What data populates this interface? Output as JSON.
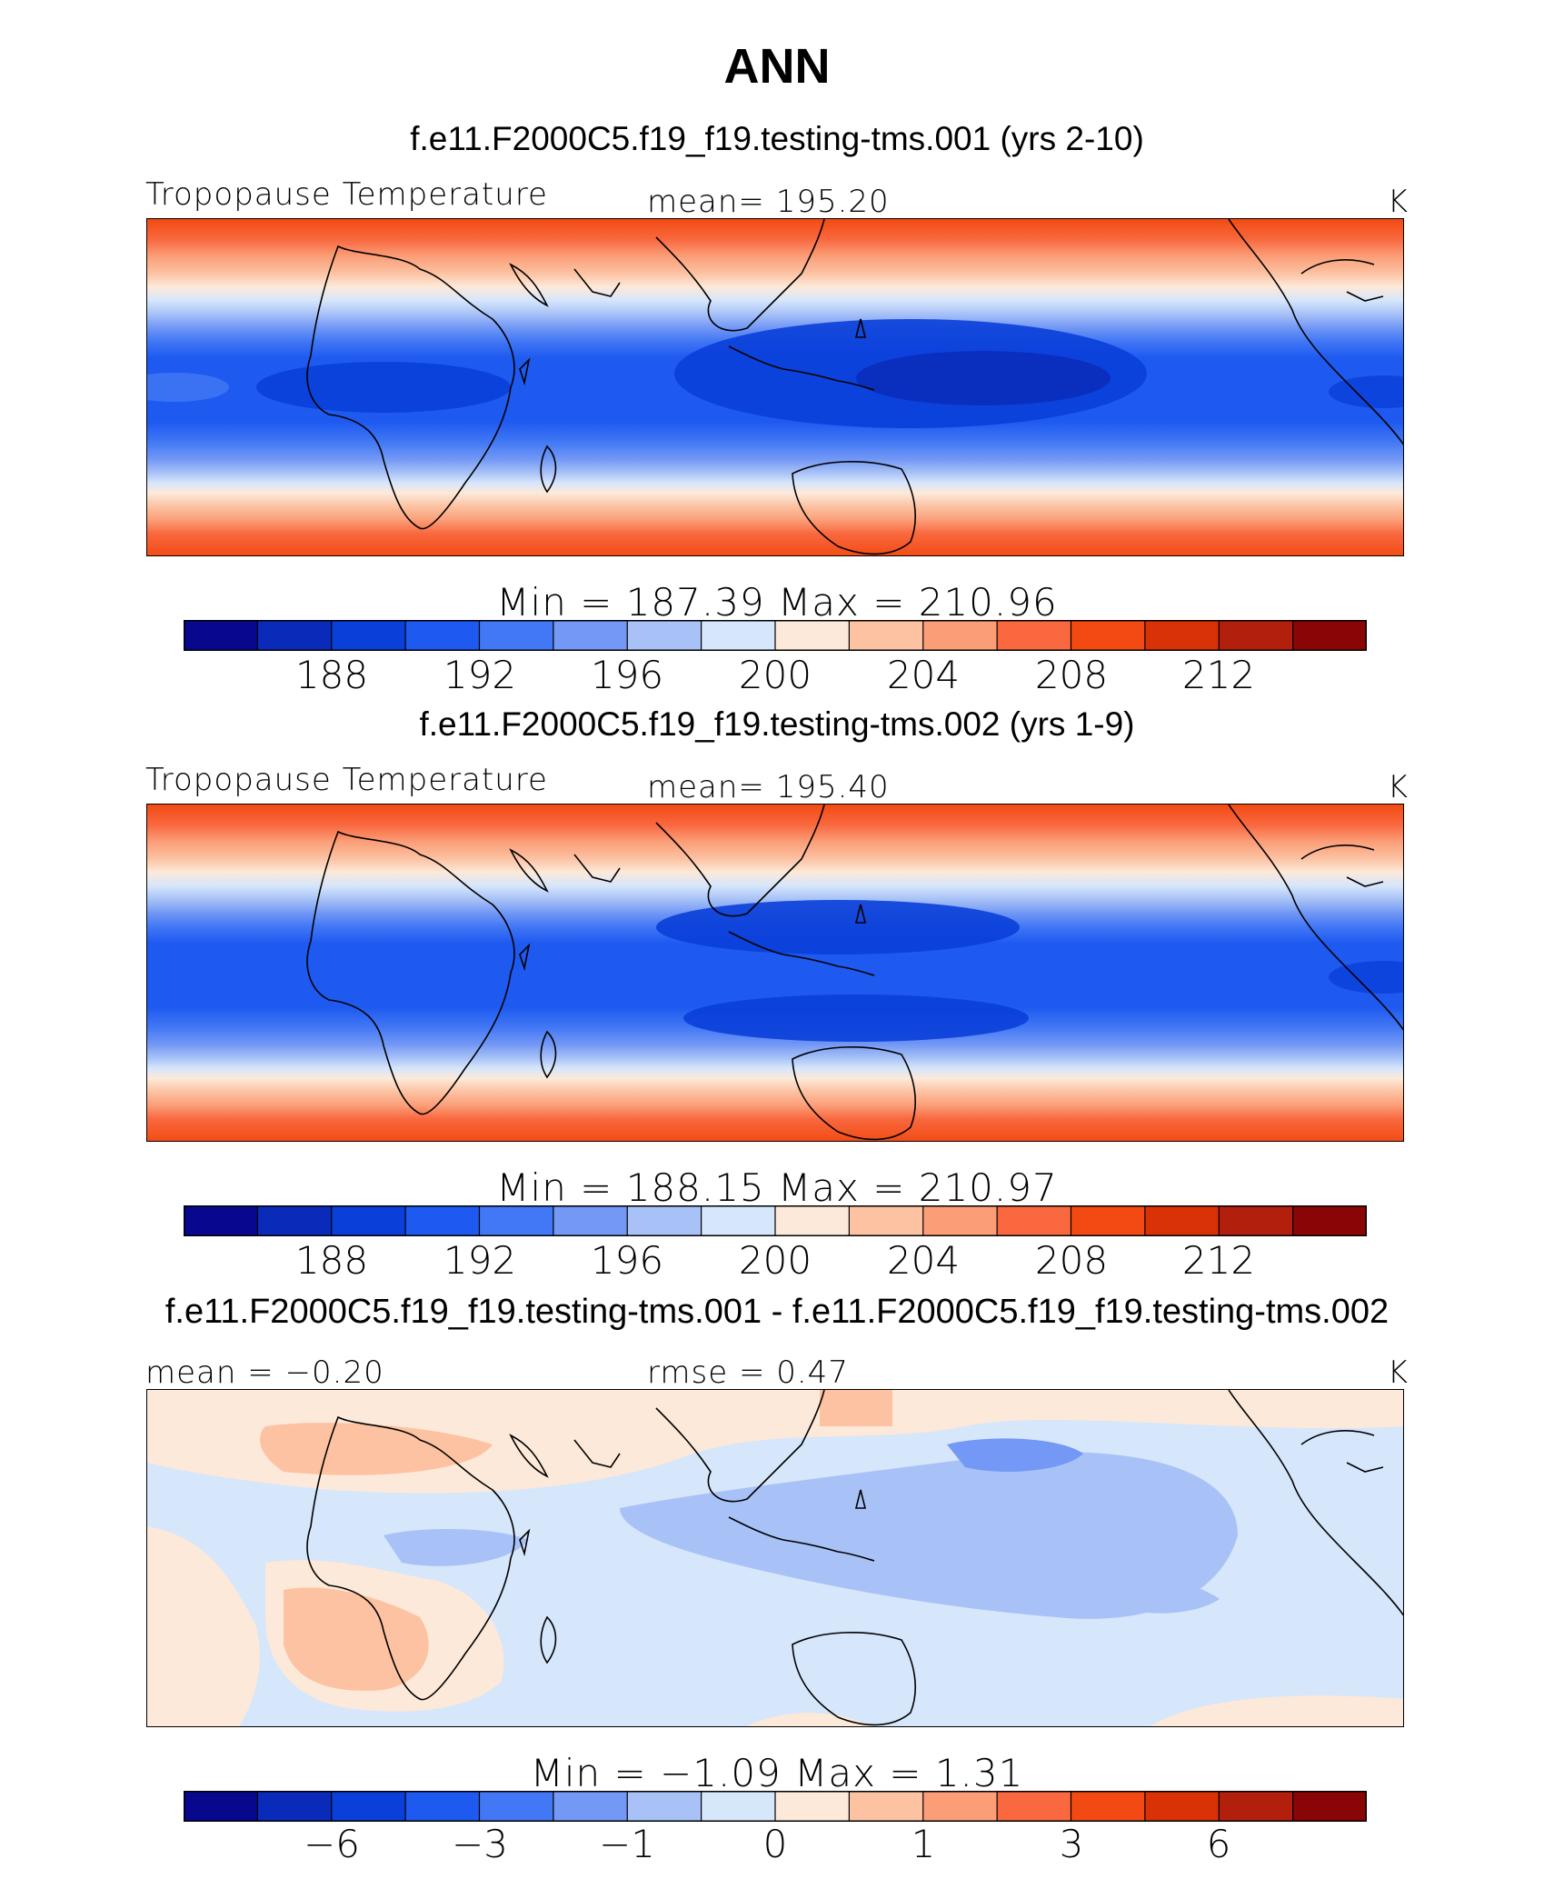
{
  "title": "ANN",
  "variable_label": "Tropopause Temperature",
  "units": "K",
  "panels": [
    {
      "id": "test",
      "case_title": "f.e11.F2000C5.f19_f19.testing-tms.001 (yrs 2-10)",
      "left_label": "Tropopause Temperature",
      "mid_label": "mean=  195.20",
      "right_label": "K",
      "minmax_label": "Min  =  187.39  Max  =  210.96",
      "min": 187.39,
      "max": 210.96,
      "mean": 195.2
    },
    {
      "id": "ref",
      "case_title": "f.e11.F2000C5.f19_f19.testing-tms.002 (yrs 1-9)",
      "left_label": "Tropopause Temperature",
      "mid_label": "mean=  195.40",
      "right_label": "K",
      "minmax_label": "Min  =  188.15  Max  =  210.97",
      "min": 188.15,
      "max": 210.97,
      "mean": 195.4
    },
    {
      "id": "diff",
      "case_title": "f.e11.F2000C5.f19_f19.testing-tms.001 - f.e11.F2000C5.f19_f19.testing-tms.002",
      "left_label": "mean =   −0.20",
      "mid_label": "rmse =     0.47",
      "right_label": "K",
      "minmax_label": "Min  =    −1.09  Max  =     1.31",
      "min": -1.09,
      "max": 1.31,
      "mean": -0.2,
      "rmse": 0.47
    }
  ],
  "colorbar": {
    "colors": [
      "#08088f",
      "#0a2bba",
      "#0a3fd9",
      "#1e5af0",
      "#4278f5",
      "#7398f5",
      "#a8c2f7",
      "#d6e6fb",
      "#fde9d9",
      "#fcc2a2",
      "#fb9e78",
      "#f9683f",
      "#f24a12",
      "#d93206",
      "#b21f0c",
      "#8a0505"
    ],
    "tick_labels_abs": [
      "188",
      "192",
      "196",
      "200",
      "204",
      "208",
      "212"
    ],
    "tick_labels_diff": [
      "−6",
      "−3",
      "−1",
      "0",
      "1",
      "3",
      "6"
    ]
  },
  "chart_data": [
    {
      "type": "heatmap",
      "title": "f.e11.F2000C5.f19_f19.testing-tms.001 (yrs 2-10)",
      "variable": "Tropopause Temperature",
      "units": "K",
      "contour_levels": [
        186,
        188,
        190,
        192,
        194,
        196,
        198,
        200,
        202,
        204,
        206,
        208,
        210,
        212,
        214
      ],
      "mean": 195.2,
      "min": 187.39,
      "max": 210.96,
      "projection": "cylindrical equidistant, centered on Indian Ocean",
      "latitude_bands": [
        "~45N: 208",
        "~30N: 200",
        "~15N: 192",
        "EQ: 188",
        "~15S: 192",
        "~30S: 200",
        "~45S: 210"
      ]
    },
    {
      "type": "heatmap",
      "title": "f.e11.F2000C5.f19_f19.testing-tms.002 (yrs 1-9)",
      "variable": "Tropopause Temperature",
      "units": "K",
      "contour_levels": [
        186,
        188,
        190,
        192,
        194,
        196,
        198,
        200,
        202,
        204,
        206,
        208,
        210,
        212,
        214
      ],
      "mean": 195.4,
      "min": 188.15,
      "max": 210.97
    },
    {
      "type": "heatmap",
      "title": "f.e11.F2000C5.f19_f19.testing-tms.001 - f.e11.F2000C5.f19_f19.testing-tms.002",
      "variable": "Tropopause Temperature difference",
      "units": "K",
      "contour_levels": [
        -8,
        -6,
        -4,
        -3,
        -2,
        -1,
        -0.5,
        0,
        0.5,
        1,
        2,
        3,
        4,
        6,
        8
      ],
      "mean": -0.2,
      "rmse": 0.47,
      "min": -1.09,
      "max": 1.31
    }
  ]
}
